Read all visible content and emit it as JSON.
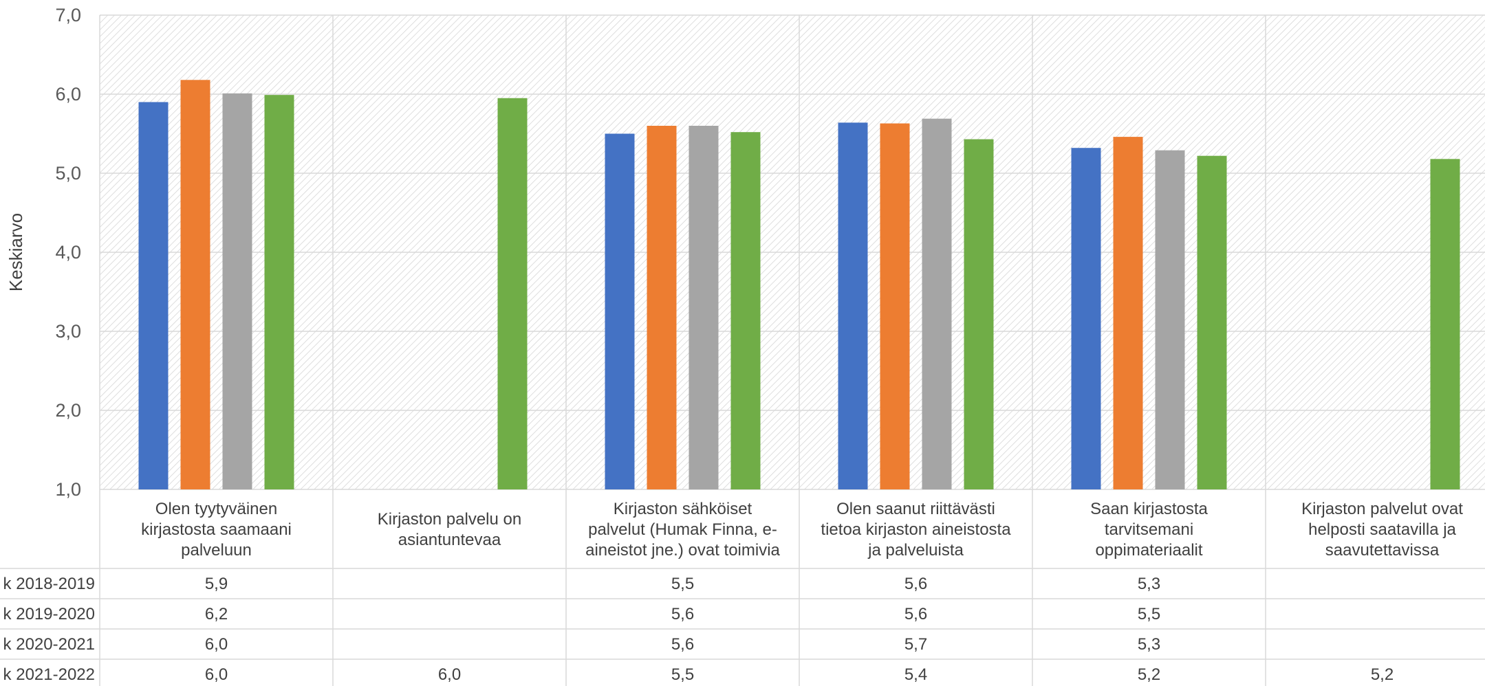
{
  "chart_data": {
    "type": "bar",
    "ylabel": "Keskiarvo",
    "ylim": [
      1.0,
      7.0
    ],
    "yticks": [
      "1,0",
      "2,0",
      "3,0",
      "4,0",
      "5,0",
      "6,0",
      "7,0"
    ],
    "grid": true,
    "categories": [
      [
        "Olen tyytyväinen",
        "kirjastosta saamaani",
        "palveluun"
      ],
      [
        "Kirjaston palvelu on",
        "asiantuntevaa"
      ],
      [
        "Kirjaston sähköiset",
        "palvelut (Humak Finna, e-",
        "aineistot jne.) ovat toimivia"
      ],
      [
        "Olen saanut riittävästi",
        "tietoa kirjaston aineistosta",
        "ja palveluista"
      ],
      [
        "Saan kirjastosta",
        "tarvitsemani",
        "oppimateriaalit"
      ],
      [
        "Kirjaston palvelut ovat",
        "helposti saatavilla ja",
        "saavutettavissa"
      ]
    ],
    "series": [
      {
        "name": "k 2018-2019",
        "color": "#4472C4",
        "values": [
          5.9,
          null,
          5.5,
          5.64,
          5.32,
          null
        ],
        "labels": [
          "5,9",
          "",
          "5,5",
          "5,6",
          "5,3",
          ""
        ]
      },
      {
        "name": "k 2019-2020",
        "color": "#ED7D31",
        "values": [
          6.18,
          null,
          5.6,
          5.63,
          5.46,
          null
        ],
        "labels": [
          "6,2",
          "",
          "5,6",
          "5,6",
          "5,5",
          ""
        ]
      },
      {
        "name": "k 2020-2021",
        "color": "#A5A5A5",
        "values": [
          6.01,
          null,
          5.6,
          5.69,
          5.29,
          null
        ],
        "labels": [
          "6,0",
          "",
          "5,6",
          "5,7",
          "5,3",
          ""
        ]
      },
      {
        "name": "k 2021-2022",
        "color": "#70AD47",
        "values": [
          5.99,
          5.95,
          5.52,
          5.43,
          5.22,
          5.18
        ],
        "labels": [
          "6,0",
          "6,0",
          "5,5",
          "5,4",
          "5,2",
          "5,2"
        ]
      }
    ]
  }
}
